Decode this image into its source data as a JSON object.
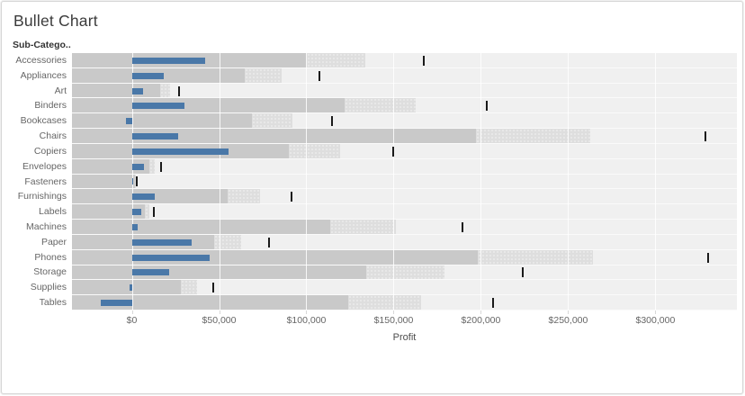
{
  "title": "Bullet Chart",
  "row_header": "Sub-Catego..",
  "colors": {
    "bar": "#4a78a8",
    "band_dark": "#c9c9c9",
    "band_light": "#dedede",
    "plot_bg": "#f0f0f0",
    "reference_line": "#1a1a1a"
  },
  "chart_data": {
    "type": "bar",
    "subtype": "bullet",
    "orientation": "horizontal",
    "title": "Bullet Chart",
    "xlabel": "Profit",
    "ylabel": "Sub-Catego..",
    "xlim": [
      -34300,
      346700
    ],
    "x_ticks": [
      0,
      50000,
      100000,
      150000,
      200000,
      250000,
      300000
    ],
    "x_tick_labels": [
      "$0",
      "$50,000",
      "$100,000",
      "$150,000",
      "$200,000",
      "$250,000",
      "$300,000"
    ],
    "grid": "vertical-white-lines-at-ticks",
    "legend": "none",
    "band_fractions_of_reference": [
      0.6,
      0.8
    ],
    "categories": [
      "Accessories",
      "Appliances",
      "Art",
      "Binders",
      "Bookcases",
      "Chairs",
      "Copiers",
      "Envelopes",
      "Fasteners",
      "Furnishings",
      "Labels",
      "Machines",
      "Paper",
      "Phones",
      "Storage",
      "Supplies",
      "Tables"
    ],
    "series": [
      {
        "name": "Profit (blue bar)",
        "role": "bar",
        "values": [
          41900,
          18100,
          6530,
          30200,
          -3470,
          26600,
          55600,
          6960,
          950,
          13100,
          5550,
          3390,
          34100,
          44500,
          21300,
          -1190,
          -17700
        ]
      },
      {
        "name": "Sales reference (black line, bands at 60% and 80%)",
        "role": "reference_line",
        "values": [
          167400,
          107500,
          27100,
          203400,
          114900,
          328400,
          149500,
          16500,
          3020,
          91700,
          12500,
          189200,
          78500,
          330000,
          223800,
          46700,
          207000
        ]
      }
    ]
  }
}
